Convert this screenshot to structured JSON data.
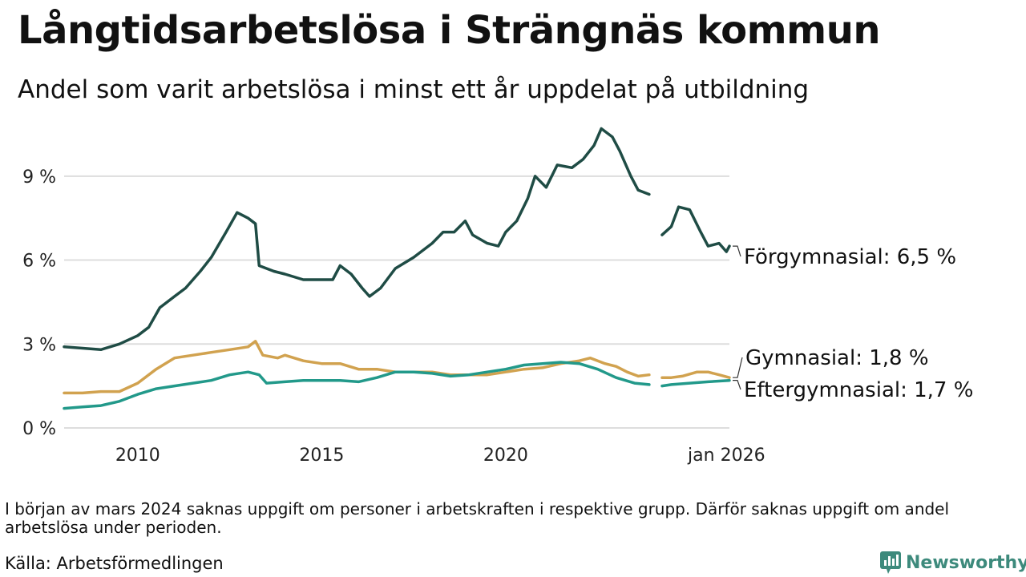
{
  "title": "Långtidsarbetslösa i Strängnäs kommun",
  "subtitle": "Andel som varit arbetslösa i minst ett år uppdelat på utbildning",
  "footnote": "I början av mars 2024 saknas uppgift om personer i arbetskraften i respektive grupp. Därför saknas uppgift om andel arbetslösa under perioden.",
  "source": "Källa: Arbetsförmedlingen",
  "brand": "Newsworthy",
  "colors": {
    "forgymnasial": "#1f4c45",
    "gymnasial": "#d1a24f",
    "eftergymnasial": "#22998a",
    "grid": "#dddddd",
    "brand": "#3d8a7c"
  },
  "chart_data": {
    "type": "line",
    "title": "Långtidsarbetslösa i Strängnäs kommun",
    "xlabel": "",
    "ylabel": "",
    "xlim": [
      2008.0,
      2026.08
    ],
    "ylim": [
      0,
      11
    ],
    "x_ticks": [
      {
        "value": 2010,
        "label": "2010"
      },
      {
        "value": 2015,
        "label": "2015"
      },
      {
        "value": 2020,
        "label": "2020"
      },
      {
        "value": 2026.0,
        "label": "jan 2026"
      }
    ],
    "y_ticks": [
      {
        "value": 0,
        "label": "0 %"
      },
      {
        "value": 3,
        "label": "3 %"
      },
      {
        "value": 6,
        "label": "6 %"
      },
      {
        "value": 9,
        "label": "9 %"
      }
    ],
    "gap": {
      "from": 2023.9,
      "to": 2024.25
    },
    "series": [
      {
        "name": "Förgymnasial",
        "end_label": "Förgymnasial: 6,5 %",
        "color": "#1f4c45",
        "points": [
          [
            2008.0,
            2.9
          ],
          [
            2008.5,
            2.85
          ],
          [
            2009.0,
            2.8
          ],
          [
            2009.5,
            3.0
          ],
          [
            2010.0,
            3.3
          ],
          [
            2010.3,
            3.6
          ],
          [
            2010.6,
            4.3
          ],
          [
            2011.0,
            4.7
          ],
          [
            2011.3,
            5.0
          ],
          [
            2011.7,
            5.6
          ],
          [
            2012.0,
            6.1
          ],
          [
            2012.4,
            7.0
          ],
          [
            2012.7,
            7.7
          ],
          [
            2013.0,
            7.5
          ],
          [
            2013.2,
            7.3
          ],
          [
            2013.3,
            5.8
          ],
          [
            2013.7,
            5.6
          ],
          [
            2014.0,
            5.5
          ],
          [
            2014.5,
            5.3
          ],
          [
            2015.0,
            5.3
          ],
          [
            2015.3,
            5.3
          ],
          [
            2015.5,
            5.8
          ],
          [
            2015.8,
            5.5
          ],
          [
            2016.1,
            5.0
          ],
          [
            2016.3,
            4.7
          ],
          [
            2016.6,
            5.0
          ],
          [
            2017.0,
            5.7
          ],
          [
            2017.5,
            6.1
          ],
          [
            2018.0,
            6.6
          ],
          [
            2018.3,
            7.0
          ],
          [
            2018.6,
            7.0
          ],
          [
            2018.9,
            7.4
          ],
          [
            2019.1,
            6.9
          ],
          [
            2019.5,
            6.6
          ],
          [
            2019.8,
            6.5
          ],
          [
            2020.0,
            7.0
          ],
          [
            2020.3,
            7.4
          ],
          [
            2020.6,
            8.2
          ],
          [
            2020.8,
            9.0
          ],
          [
            2021.1,
            8.6
          ],
          [
            2021.4,
            9.4
          ],
          [
            2021.8,
            9.3
          ],
          [
            2022.1,
            9.6
          ],
          [
            2022.4,
            10.1
          ],
          [
            2022.6,
            10.7
          ],
          [
            2022.9,
            10.4
          ],
          [
            2023.1,
            9.9
          ],
          [
            2023.4,
            9.0
          ],
          [
            2023.6,
            8.5
          ],
          [
            2023.8,
            8.4
          ],
          [
            2023.9,
            8.35
          ],
          [
            2024.25,
            6.9
          ],
          [
            2024.5,
            7.2
          ],
          [
            2024.7,
            7.9
          ],
          [
            2025.0,
            7.8
          ],
          [
            2025.3,
            7.0
          ],
          [
            2025.5,
            6.5
          ],
          [
            2025.8,
            6.6
          ],
          [
            2026.0,
            6.3
          ],
          [
            2026.08,
            6.5
          ]
        ]
      },
      {
        "name": "Gymnasial",
        "end_label": "Gymnasial: 1,8 %",
        "color": "#d1a24f",
        "points": [
          [
            2008.0,
            1.25
          ],
          [
            2008.5,
            1.25
          ],
          [
            2009.0,
            1.3
          ],
          [
            2009.5,
            1.3
          ],
          [
            2010.0,
            1.6
          ],
          [
            2010.5,
            2.1
          ],
          [
            2011.0,
            2.5
          ],
          [
            2011.5,
            2.6
          ],
          [
            2012.0,
            2.7
          ],
          [
            2012.5,
            2.8
          ],
          [
            2013.0,
            2.9
          ],
          [
            2013.2,
            3.1
          ],
          [
            2013.4,
            2.6
          ],
          [
            2013.8,
            2.5
          ],
          [
            2014.0,
            2.6
          ],
          [
            2014.5,
            2.4
          ],
          [
            2015.0,
            2.3
          ],
          [
            2015.5,
            2.3
          ],
          [
            2016.0,
            2.1
          ],
          [
            2016.5,
            2.1
          ],
          [
            2017.0,
            2.0
          ],
          [
            2017.5,
            2.0
          ],
          [
            2018.0,
            2.0
          ],
          [
            2018.5,
            1.9
          ],
          [
            2019.0,
            1.9
          ],
          [
            2019.5,
            1.9
          ],
          [
            2020.0,
            2.0
          ],
          [
            2020.5,
            2.1
          ],
          [
            2021.0,
            2.15
          ],
          [
            2021.5,
            2.3
          ],
          [
            2022.0,
            2.4
          ],
          [
            2022.3,
            2.5
          ],
          [
            2022.7,
            2.3
          ],
          [
            2023.0,
            2.2
          ],
          [
            2023.3,
            2.0
          ],
          [
            2023.6,
            1.85
          ],
          [
            2023.9,
            1.9
          ],
          [
            2024.25,
            1.8
          ],
          [
            2024.5,
            1.8
          ],
          [
            2024.8,
            1.85
          ],
          [
            2025.2,
            2.0
          ],
          [
            2025.5,
            2.0
          ],
          [
            2025.8,
            1.9
          ],
          [
            2026.08,
            1.8
          ]
        ]
      },
      {
        "name": "Eftergymnasial",
        "end_label": "Eftergymnasial: 1,7 %",
        "color": "#22998a",
        "points": [
          [
            2008.0,
            0.7
          ],
          [
            2008.5,
            0.75
          ],
          [
            2009.0,
            0.8
          ],
          [
            2009.5,
            0.95
          ],
          [
            2010.0,
            1.2
          ],
          [
            2010.5,
            1.4
          ],
          [
            2011.0,
            1.5
          ],
          [
            2011.5,
            1.6
          ],
          [
            2012.0,
            1.7
          ],
          [
            2012.5,
            1.9
          ],
          [
            2013.0,
            2.0
          ],
          [
            2013.3,
            1.9
          ],
          [
            2013.5,
            1.6
          ],
          [
            2014.0,
            1.65
          ],
          [
            2014.5,
            1.7
          ],
          [
            2015.0,
            1.7
          ],
          [
            2015.5,
            1.7
          ],
          [
            2016.0,
            1.65
          ],
          [
            2016.5,
            1.8
          ],
          [
            2017.0,
            2.0
          ],
          [
            2017.5,
            2.0
          ],
          [
            2018.0,
            1.95
          ],
          [
            2018.5,
            1.85
          ],
          [
            2019.0,
            1.9
          ],
          [
            2019.5,
            2.0
          ],
          [
            2020.0,
            2.1
          ],
          [
            2020.5,
            2.25
          ],
          [
            2021.0,
            2.3
          ],
          [
            2021.5,
            2.35
          ],
          [
            2022.0,
            2.3
          ],
          [
            2022.5,
            2.1
          ],
          [
            2023.0,
            1.8
          ],
          [
            2023.5,
            1.6
          ],
          [
            2023.9,
            1.55
          ],
          [
            2024.25,
            1.5
          ],
          [
            2024.5,
            1.55
          ],
          [
            2025.0,
            1.6
          ],
          [
            2025.5,
            1.65
          ],
          [
            2026.08,
            1.7
          ]
        ]
      }
    ]
  }
}
